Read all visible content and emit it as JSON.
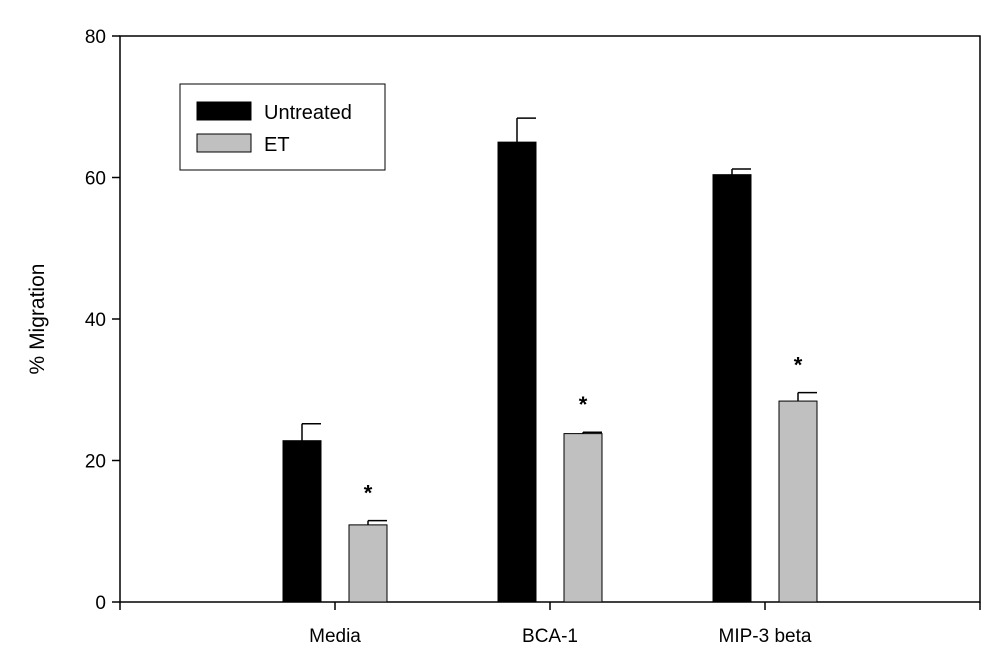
{
  "chart_data": {
    "type": "bar",
    "title": "",
    "xlabel": "",
    "ylabel": "% Migration",
    "ylim": [
      0,
      80
    ],
    "yticks": [
      0,
      20,
      40,
      60,
      80
    ],
    "xlim": [
      0,
      4
    ],
    "categories": [
      "Media",
      "BCA-1",
      "MIP-3 beta"
    ],
    "category_positions": [
      1,
      2,
      3
    ],
    "series": [
      {
        "name": "Untreated",
        "color": "#000000",
        "values": [
          22.8,
          65.0,
          60.4
        ],
        "errors": [
          2.4,
          3.4,
          0.8
        ]
      },
      {
        "name": "ET",
        "color": "#c0c0c0",
        "values": [
          10.9,
          23.8,
          28.4
        ],
        "errors": [
          0.6,
          0.2,
          1.2
        ]
      }
    ],
    "annotations": [
      {
        "text": "*",
        "series": "ET",
        "category": "Media"
      },
      {
        "text": "*",
        "series": "ET",
        "category": "BCA-1"
      },
      {
        "text": "*",
        "series": "ET",
        "category": "MIP-3 beta"
      }
    ],
    "legend": {
      "position": "top-left",
      "entries": [
        "Untreated",
        "ET"
      ]
    },
    "grid": false
  }
}
